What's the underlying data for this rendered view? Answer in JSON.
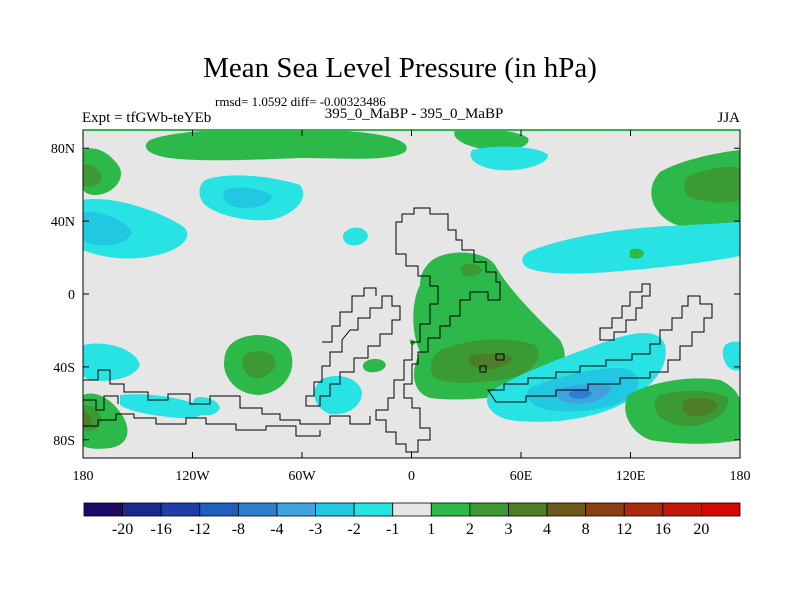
{
  "chart_data": {
    "type": "contour-map",
    "title": "Mean Sea Level Pressure (in hPa)",
    "stats": "rmsd= 1.0592 diff= -0.00323486",
    "left_label": "Expt = tfGWb-teYEb",
    "center_label": "395_0_MaBP - 395_0_MaBP",
    "right_label": "JJA",
    "x_ticks": [
      "180",
      "120W",
      "60W",
      "0",
      "60E",
      "120E",
      "180"
    ],
    "y_ticks": [
      "80N",
      "40N",
      "0",
      "40S",
      "80S"
    ],
    "colorbar": {
      "labels": [
        "-20",
        "-16",
        "-12",
        "-8",
        "-4",
        "-3",
        "-2",
        "-1",
        "1",
        "2",
        "3",
        "4",
        "8",
        "12",
        "16",
        "20"
      ],
      "colors": [
        "#1a0a66",
        "#1c2a8c",
        "#1f3fa8",
        "#1f5fbf",
        "#2b7fd0",
        "#3fa3e0",
        "#22c8e2",
        "#27e3e3",
        "#e6e6e6",
        "#2db84a",
        "#3c9a35",
        "#4c7d27",
        "#6a5b1c",
        "#8c3f14",
        "#ac2a0e",
        "#c2190b",
        "#d40808"
      ]
    },
    "palette": {
      "background": "#e6e6e6",
      "neg_1": "#27e3e3",
      "neg_2": "#22c8e2",
      "neg_3": "#3fa3e0",
      "neg_4": "#2b7fd0",
      "pos_1": "#2db84a",
      "pos_2": "#3c9a35",
      "pos_3": "#4c7d27"
    }
  }
}
